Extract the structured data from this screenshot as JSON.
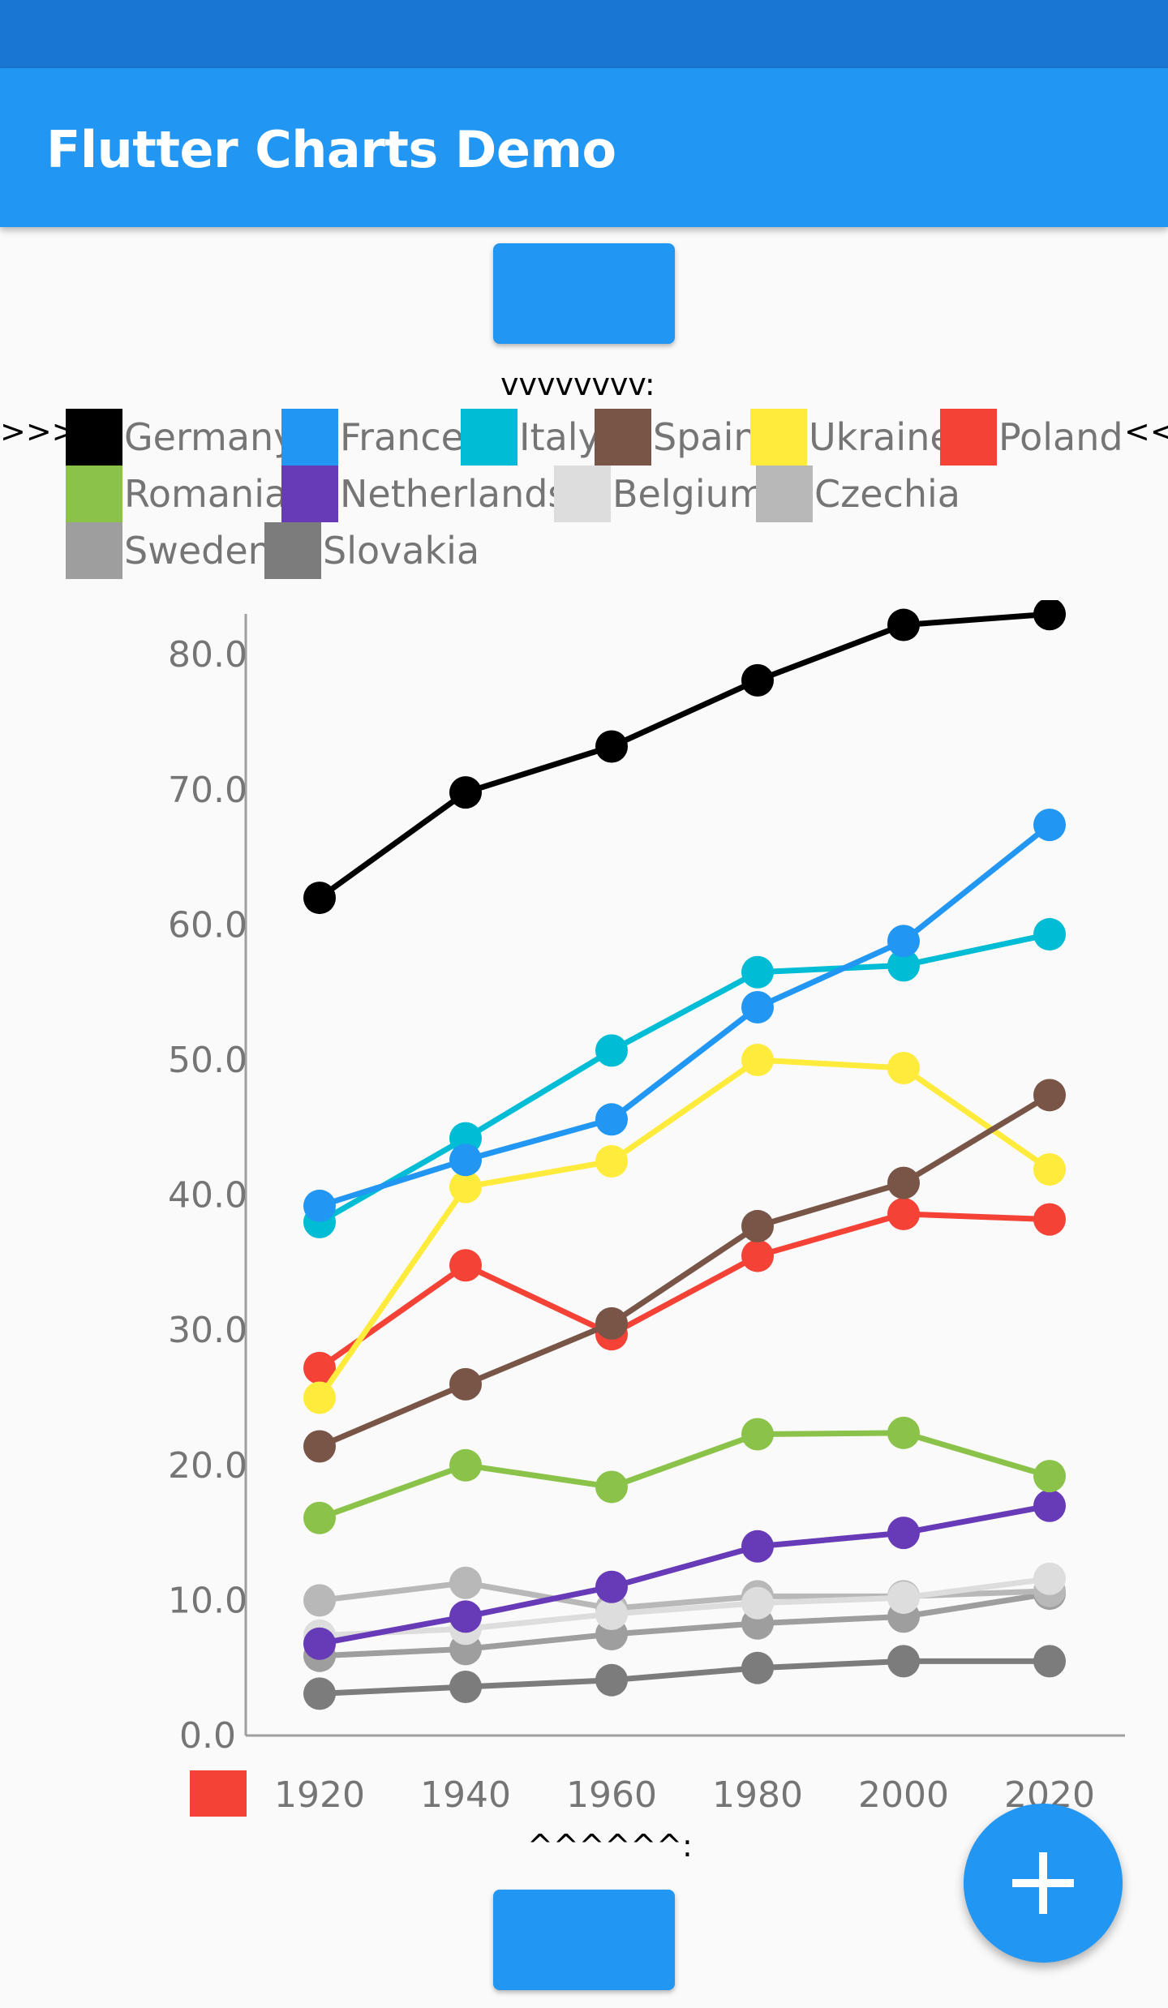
{
  "app": {
    "title": "Flutter Charts Demo"
  },
  "captions": {
    "top": "vvvvvvvv:",
    "bottom": "^^^^^^:"
  },
  "markers": {
    "left": ">>>",
    "right": "<<"
  },
  "colors": {
    "appbar": "#2196f3",
    "statusbar": "#1976d2",
    "fab": "#2196f3",
    "button": "#2196f3"
  },
  "fab": {
    "icon": "add-icon"
  },
  "chart_data": {
    "type": "line",
    "ylim": [
      0,
      83
    ],
    "yticks": [
      "0.0",
      "10.0",
      "20.0",
      "30.0",
      "40.0",
      "50.0",
      "60.0",
      "70.0",
      "80.0"
    ],
    "ytick_values": [
      0,
      10,
      20,
      30,
      40,
      50,
      60,
      70,
      80
    ],
    "categories": [
      "1920",
      "1940",
      "1960",
      "1980",
      "2000",
      "2020"
    ],
    "legend_position": "top",
    "grid": false,
    "xaxis_marker_color": "#f44336",
    "series": [
      {
        "name": "Germany",
        "color": "#000000",
        "values": [
          62,
          69.8,
          73.2,
          78.1,
          82.2,
          83.0
        ]
      },
      {
        "name": "France",
        "color": "#2196f3",
        "values": [
          39.2,
          42.6,
          45.6,
          53.9,
          58.8,
          67.4
        ]
      },
      {
        "name": "Italy",
        "color": "#00bcd4",
        "values": [
          38,
          44.2,
          50.7,
          56.5,
          57,
          59.3
        ]
      },
      {
        "name": "Spain",
        "color": "#795548",
        "values": [
          21.4,
          26.0,
          30.5,
          37.7,
          40.9,
          47.4
        ]
      },
      {
        "name": "Ukraine",
        "color": "#ffeb3b",
        "values": [
          25.0,
          40.6,
          42.5,
          50.0,
          49.4,
          41.9
        ]
      },
      {
        "name": "Poland",
        "color": "#f44336",
        "values": [
          27.2,
          34.8,
          29.7,
          35.5,
          38.6,
          38.2
        ]
      },
      {
        "name": "Romania",
        "color": "#8bc34a",
        "values": [
          16.1,
          20.0,
          18.4,
          22.3,
          22.4,
          19.2
        ]
      },
      {
        "name": "Netherlands",
        "color": "#673ab7",
        "values": [
          6.8,
          8.8,
          11.0,
          14.0,
          15.0,
          17.0
        ]
      },
      {
        "name": "Belgium",
        "color": "#dddddd",
        "values": [
          7.4,
          7.9,
          9.0,
          9.8,
          10.2,
          11.6
        ]
      },
      {
        "name": "Czechia",
        "color": "#b8b8b8",
        "values": [
          10.0,
          11.3,
          9.4,
          10.3,
          10.3,
          10.7
        ]
      },
      {
        "name": "Sweden",
        "color": "#9e9e9e",
        "values": [
          5.9,
          6.4,
          7.5,
          8.3,
          8.8,
          10.5
        ]
      },
      {
        "name": "Slovakia",
        "color": "#7c7c7c",
        "values": [
          3.1,
          3.6,
          4.1,
          5.0,
          5.5,
          5.5
        ]
      }
    ]
  }
}
